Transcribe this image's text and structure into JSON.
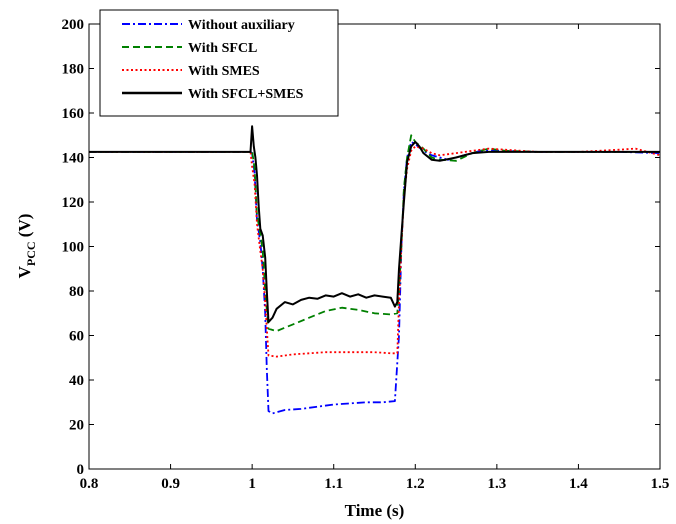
{
  "chart_data": {
    "type": "line",
    "title": "",
    "xlabel": "Time (s)",
    "ylabel_main": "V",
    "ylabel_sub": "PCC",
    "ylabel_unit": " (V)",
    "xlim": [
      0.8,
      1.5
    ],
    "ylim": [
      0,
      200
    ],
    "xticks": [
      "0.8",
      "0.9",
      "1",
      "1.1",
      "1.2",
      "1.3",
      "1.4",
      "1.5"
    ],
    "yticks": [
      "0",
      "20",
      "40",
      "60",
      "80",
      "100",
      "120",
      "140",
      "160",
      "180",
      "200"
    ],
    "grid": false,
    "legend_position": "top-left",
    "series": [
      {
        "name": "Without auxiliary",
        "color": "#0000ff",
        "dash": "dash-dot",
        "points": [
          [
            0.8,
            142.5
          ],
          [
            0.998,
            142.5
          ],
          [
            1.0,
            142
          ],
          [
            1.003,
            133
          ],
          [
            1.006,
            112
          ],
          [
            1.01,
            102
          ],
          [
            1.013,
            90
          ],
          [
            1.016,
            70
          ],
          [
            1.018,
            45
          ],
          [
            1.02,
            26
          ],
          [
            1.025,
            25
          ],
          [
            1.04,
            26.5
          ],
          [
            1.06,
            27
          ],
          [
            1.08,
            28
          ],
          [
            1.1,
            29
          ],
          [
            1.12,
            29.5
          ],
          [
            1.14,
            30
          ],
          [
            1.16,
            30
          ],
          [
            1.175,
            30.5
          ],
          [
            1.18,
            60
          ],
          [
            1.183,
            100
          ],
          [
            1.186,
            125
          ],
          [
            1.19,
            140
          ],
          [
            1.195,
            147
          ],
          [
            1.2,
            146
          ],
          [
            1.21,
            143
          ],
          [
            1.22,
            141
          ],
          [
            1.23,
            140
          ],
          [
            1.24,
            139
          ],
          [
            1.26,
            141
          ],
          [
            1.28,
            143
          ],
          [
            1.3,
            143
          ],
          [
            1.35,
            142.5
          ],
          [
            1.4,
            142.5
          ],
          [
            1.45,
            142.5
          ],
          [
            1.5,
            142
          ]
        ]
      },
      {
        "name": "With SFCL",
        "color": "#008000",
        "dash": "dashed",
        "points": [
          [
            0.8,
            142.5
          ],
          [
            0.998,
            142.5
          ],
          [
            1.0,
            143
          ],
          [
            1.003,
            135
          ],
          [
            1.006,
            114
          ],
          [
            1.01,
            106
          ],
          [
            1.013,
            98
          ],
          [
            1.016,
            80
          ],
          [
            1.02,
            63
          ],
          [
            1.03,
            62
          ],
          [
            1.05,
            65
          ],
          [
            1.07,
            68
          ],
          [
            1.09,
            71
          ],
          [
            1.11,
            72.5
          ],
          [
            1.13,
            71.5
          ],
          [
            1.15,
            70
          ],
          [
            1.17,
            69.5
          ],
          [
            1.178,
            70
          ],
          [
            1.18,
            80
          ],
          [
            1.183,
            100
          ],
          [
            1.186,
            126
          ],
          [
            1.19,
            140
          ],
          [
            1.195,
            150
          ],
          [
            1.2,
            147
          ],
          [
            1.21,
            144
          ],
          [
            1.22,
            140
          ],
          [
            1.23,
            139
          ],
          [
            1.25,
            138.5
          ],
          [
            1.27,
            142
          ],
          [
            1.29,
            144
          ],
          [
            1.31,
            143
          ],
          [
            1.35,
            142.5
          ],
          [
            1.4,
            142.5
          ],
          [
            1.45,
            142.5
          ],
          [
            1.5,
            142.5
          ]
        ]
      },
      {
        "name": "With SMES",
        "color": "#ff0000",
        "dash": "dotted",
        "points": [
          [
            0.8,
            142.5
          ],
          [
            0.998,
            142.5
          ],
          [
            1.0,
            136
          ],
          [
            1.003,
            128
          ],
          [
            1.006,
            110
          ],
          [
            1.01,
            98
          ],
          [
            1.013,
            90
          ],
          [
            1.016,
            75
          ],
          [
            1.02,
            51
          ],
          [
            1.03,
            50.5
          ],
          [
            1.05,
            51.5
          ],
          [
            1.07,
            52
          ],
          [
            1.09,
            52.5
          ],
          [
            1.11,
            52.5
          ],
          [
            1.13,
            52.5
          ],
          [
            1.15,
            52.5
          ],
          [
            1.17,
            52
          ],
          [
            1.178,
            52
          ],
          [
            1.18,
            75
          ],
          [
            1.183,
            100
          ],
          [
            1.186,
            122
          ],
          [
            1.19,
            135
          ],
          [
            1.195,
            143
          ],
          [
            1.2,
            145
          ],
          [
            1.21,
            144
          ],
          [
            1.22,
            142
          ],
          [
            1.23,
            141
          ],
          [
            1.25,
            142
          ],
          [
            1.27,
            143
          ],
          [
            1.29,
            144
          ],
          [
            1.31,
            143.5
          ],
          [
            1.35,
            142.5
          ],
          [
            1.4,
            142.5
          ],
          [
            1.45,
            143.5
          ],
          [
            1.47,
            144
          ],
          [
            1.49,
            142
          ],
          [
            1.5,
            141
          ]
        ]
      },
      {
        "name": "With SFCL+SMES",
        "color": "#000000",
        "dash": "solid",
        "points": [
          [
            0.8,
            142.5
          ],
          [
            0.998,
            142.5
          ],
          [
            1.0,
            154
          ],
          [
            1.002,
            145
          ],
          [
            1.004,
            140
          ],
          [
            1.006,
            132
          ],
          [
            1.008,
            118
          ],
          [
            1.01,
            108
          ],
          [
            1.013,
            105
          ],
          [
            1.016,
            95
          ],
          [
            1.018,
            80
          ],
          [
            1.02,
            66
          ],
          [
            1.025,
            68
          ],
          [
            1.03,
            72
          ],
          [
            1.04,
            75
          ],
          [
            1.05,
            74
          ],
          [
            1.06,
            76
          ],
          [
            1.07,
            77
          ],
          [
            1.08,
            76.5
          ],
          [
            1.09,
            78
          ],
          [
            1.1,
            77.5
          ],
          [
            1.11,
            79
          ],
          [
            1.12,
            77.5
          ],
          [
            1.13,
            78.5
          ],
          [
            1.14,
            77
          ],
          [
            1.15,
            78
          ],
          [
            1.16,
            77.5
          ],
          [
            1.17,
            77
          ],
          [
            1.175,
            73
          ],
          [
            1.178,
            75
          ],
          [
            1.18,
            90
          ],
          [
            1.183,
            105
          ],
          [
            1.186,
            120
          ],
          [
            1.19,
            138
          ],
          [
            1.195,
            145
          ],
          [
            1.2,
            147
          ],
          [
            1.205,
            145
          ],
          [
            1.21,
            142
          ],
          [
            1.22,
            139
          ],
          [
            1.23,
            138.5
          ],
          [
            1.25,
            140
          ],
          [
            1.27,
            142
          ],
          [
            1.29,
            142.5
          ],
          [
            1.31,
            142.5
          ],
          [
            1.35,
            142.5
          ],
          [
            1.4,
            142.5
          ],
          [
            1.45,
            142.5
          ],
          [
            1.5,
            142.5
          ]
        ]
      }
    ]
  }
}
